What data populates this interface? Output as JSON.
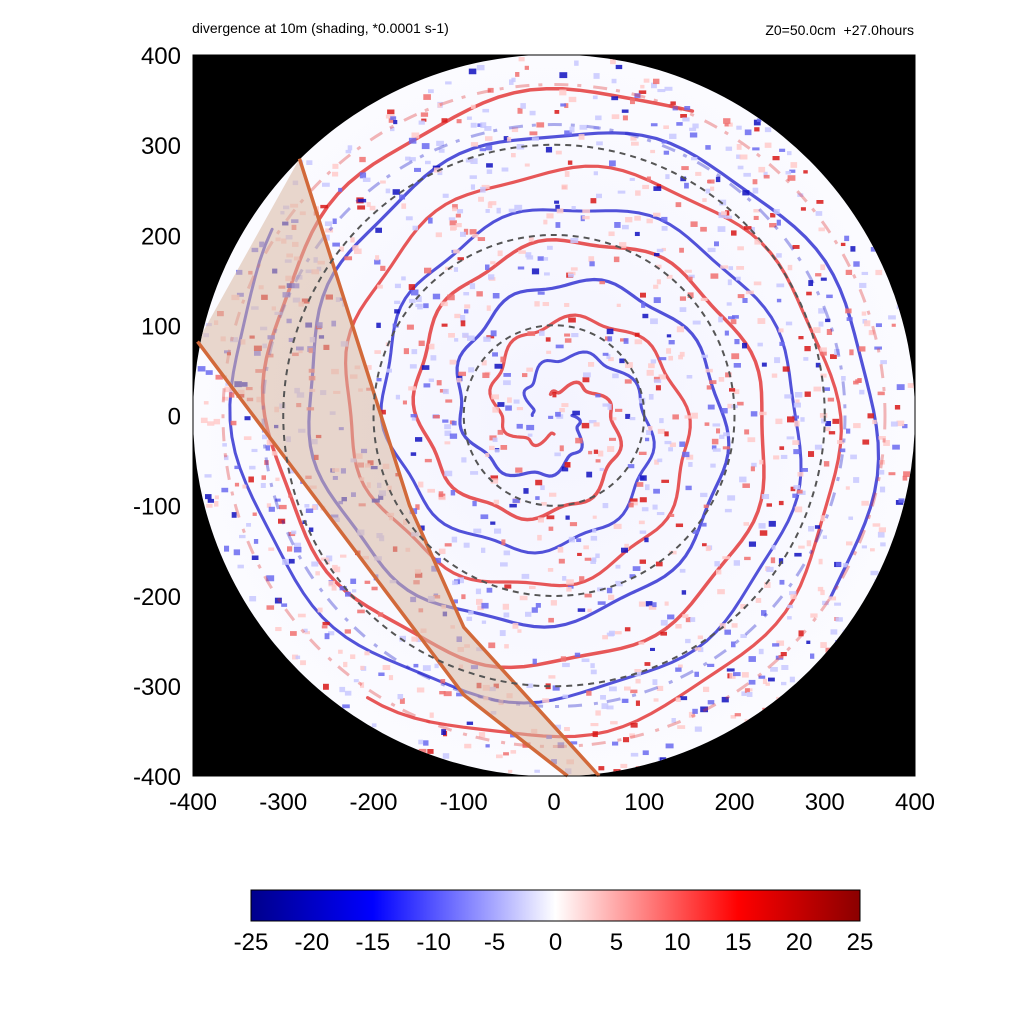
{
  "header": {
    "title": "divergence at 10m (shading, *0.0001 s-1)",
    "run_info": "Z0=50.0cm  +27.0hours"
  },
  "colors": {
    "background": "#000000",
    "negative_extreme": "#00008b",
    "negative": "#0000ff",
    "zero": "#ffffff",
    "positive": "#ff0000",
    "positive_extreme": "#8b0000",
    "dashed_rings": "#555555",
    "swath_fill": "#d9b8a3",
    "swath_edge": "#d2693a"
  },
  "chart_data": {
    "type": "heatmap",
    "title": "divergence at 10m (shading, *0.0001 s-1)",
    "xlabel": "",
    "ylabel": "",
    "xlim": [
      -400,
      400
    ],
    "ylim": [
      -400,
      400
    ],
    "x_ticks": [
      -400,
      -300,
      -200,
      -100,
      0,
      100,
      200,
      300,
      400
    ],
    "y_ticks": [
      400,
      300,
      200,
      100,
      0,
      -100,
      -200,
      -300,
      -400
    ],
    "domain_radius": 400,
    "dashed_ring_radii": [
      100,
      200,
      300
    ],
    "swath": {
      "left_edge": [
        [
          -395,
          82
        ],
        [
          -100,
          -310
        ],
        [
          15,
          -400
        ]
      ],
      "right_edge": [
        [
          -282,
          285
        ],
        [
          -160,
          -100
        ],
        [
          -100,
          -235
        ],
        [
          50,
          -400
        ]
      ]
    },
    "colorbar": {
      "range": [
        -25,
        25
      ],
      "tick_labels": [
        "-25",
        "-20",
        "-15",
        "-10",
        "-5",
        "0",
        "5",
        "10",
        "15",
        "20",
        "25"
      ]
    },
    "grid": false,
    "legend": "colorbar at bottom"
  }
}
